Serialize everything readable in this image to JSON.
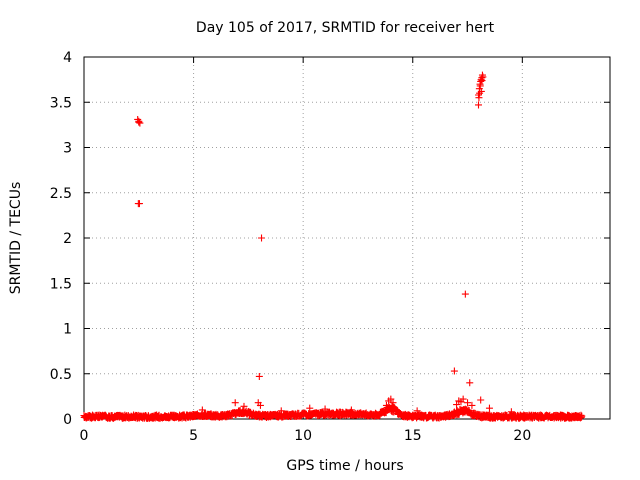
{
  "chart_data": {
    "type": "scatter",
    "title": "Day 105 of 2017, SRMTID for receiver hert",
    "xlabel": "GPS time / hours",
    "ylabel": "SRMTID / TECUs",
    "xlim": [
      0,
      24
    ],
    "ylim": [
      0,
      4
    ],
    "xticks": [
      0,
      5,
      10,
      15,
      20
    ],
    "xtick_labels": [
      "0",
      "5",
      "10",
      "15",
      "20"
    ],
    "yticks": [
      0,
      0.5,
      1,
      1.5,
      2,
      2.5,
      3,
      3.5,
      4
    ],
    "ytick_labels": [
      "0",
      "0.5",
      "1",
      "1.5",
      "2",
      "2.5",
      "3",
      "3.5",
      "4"
    ],
    "grid": true,
    "marker": "+",
    "color": "#ff0000",
    "series": [
      {
        "name": "SRMTID",
        "baseline_range_hours": [
          0.0,
          22.7
        ],
        "points": [
          [
            2.45,
            3.31
          ],
          [
            2.5,
            3.29
          ],
          [
            2.55,
            3.27
          ],
          [
            2.5,
            3.28
          ],
          [
            2.48,
            2.38
          ],
          [
            2.53,
            2.38
          ],
          [
            8.1,
            2.0
          ],
          [
            8.0,
            0.47
          ],
          [
            7.95,
            0.18
          ],
          [
            8.05,
            0.15
          ],
          [
            6.9,
            0.18
          ],
          [
            7.3,
            0.14
          ],
          [
            17.4,
            1.38
          ],
          [
            16.9,
            0.53
          ],
          [
            17.6,
            0.4
          ],
          [
            17.1,
            0.2
          ],
          [
            17.3,
            0.22
          ],
          [
            17.5,
            0.18
          ],
          [
            17.0,
            0.16
          ],
          [
            17.2,
            0.19
          ],
          [
            18.1,
            0.21
          ],
          [
            17.7,
            0.15
          ],
          [
            18.0,
            3.47
          ],
          [
            18.02,
            3.55
          ],
          [
            18.05,
            3.6
          ],
          [
            18.04,
            3.65
          ],
          [
            18.07,
            3.7
          ],
          [
            18.1,
            3.73
          ],
          [
            18.12,
            3.75
          ],
          [
            18.15,
            3.77
          ],
          [
            18.18,
            3.8
          ],
          [
            18.2,
            3.78
          ],
          [
            18.08,
            3.68
          ],
          [
            18.13,
            3.62
          ],
          [
            18.16,
            3.74
          ],
          [
            18.0,
            3.58
          ],
          [
            13.9,
            0.2
          ],
          [
            14.0,
            0.22
          ],
          [
            14.1,
            0.18
          ],
          [
            13.8,
            0.15
          ],
          [
            5.4,
            0.1
          ],
          [
            9.0,
            0.09
          ],
          [
            10.3,
            0.12
          ],
          [
            11.0,
            0.11
          ],
          [
            12.2,
            0.1
          ],
          [
            15.2,
            0.09
          ],
          [
            18.5,
            0.12
          ],
          [
            19.5,
            0.08
          ]
        ]
      }
    ]
  }
}
